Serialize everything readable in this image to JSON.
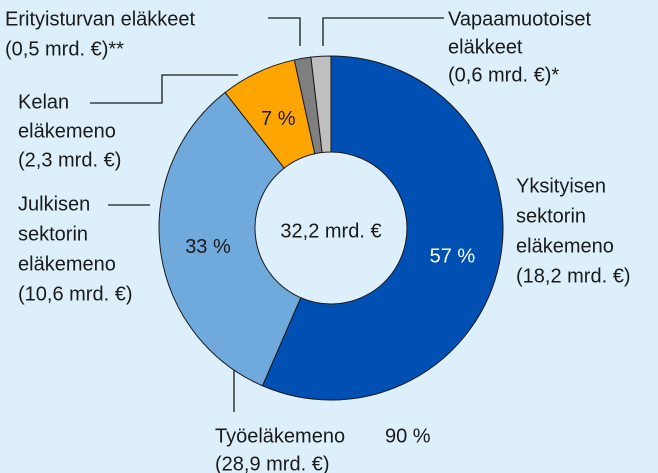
{
  "chart_data": {
    "type": "donut",
    "categories": [
      [
        "Yksityisen",
        "sektorin",
        "eläkemeno"
      ],
      [
        "Julkisen",
        "sektorin",
        "eläkemeno"
      ],
      [
        "Kelan",
        "eläkemeno"
      ],
      [
        "Erityisturvan eläkkeet"
      ],
      [
        "Vapaamuotoiset",
        "eläkkeet"
      ]
    ],
    "values": [
      18.2,
      10.6,
      2.3,
      0.5,
      0.6
    ],
    "value_labels": [
      "(18,2 mrd. €)",
      "(10,6 mrd. €)",
      "(2,3 mrd. €)",
      "(0,5 mrd. €)**",
      "(0,6 mrd. €)*"
    ],
    "percent_labels": [
      "57 %",
      "33 %",
      "7 %"
    ],
    "colors": [
      "#0050b4",
      "#70a9dc",
      "#ffa500",
      "#7f7f7f",
      "#bfbfbf"
    ],
    "center_label": "32,2 mrd. €",
    "annotation": {
      "text": "Työeläkemeno",
      "percent_label": "90 %",
      "amount_label": "(28,9 mrd. €)"
    }
  }
}
